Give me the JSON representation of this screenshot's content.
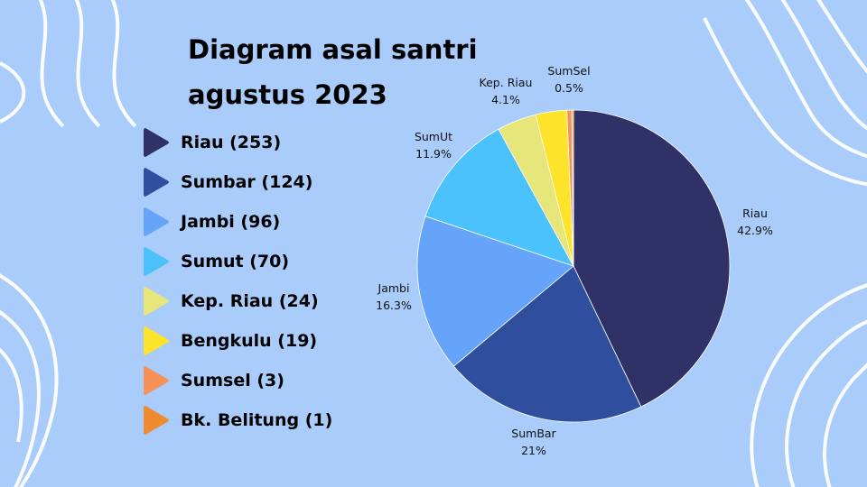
{
  "title_line1": "Diagram asal santri",
  "title_line2": "agustus 2023",
  "legend": [
    {
      "label": "Riau (253)",
      "color": "#2f3167"
    },
    {
      "label": "Sumbar (124)",
      "color": "#2f4f9e"
    },
    {
      "label": "Jambi (96)",
      "color": "#66a4fa"
    },
    {
      "label": "Sumut (70)",
      "color": "#4bc2fc"
    },
    {
      "label": "Kep. Riau (24)",
      "color": "#e7e67a"
    },
    {
      "label": "Bengkulu (19)",
      "color": "#fde329"
    },
    {
      "label": "Sumsel (3)",
      "color": "#f59257"
    },
    {
      "label": "Bk. Belitung (1)",
      "color": "#ef8a2e"
    }
  ],
  "chart_data": {
    "type": "pie",
    "title": "Diagram asal santri agustus 2023",
    "slices": [
      {
        "name": "Riau",
        "value": 253,
        "percent_label": "42.9%",
        "color": "#2f3167"
      },
      {
        "name": "SumBar",
        "value": 124,
        "percent_label": "21%",
        "color": "#2f4f9e"
      },
      {
        "name": "Jambi",
        "value": 96,
        "percent_label": "16.3%",
        "color": "#66a4fa"
      },
      {
        "name": "SumUt",
        "value": 70,
        "percent_label": "11.9%",
        "color": "#4bc2fc"
      },
      {
        "name": "Kep. Riau",
        "value": 24,
        "percent_label": "4.1%",
        "color": "#e7e67a"
      },
      {
        "name": "",
        "value": 19,
        "percent_label": "",
        "color": "#fde329"
      },
      {
        "name": "SumSel",
        "value": 3,
        "percent_label": "0.5%",
        "color": "#f59257"
      },
      {
        "name": "",
        "value": 1,
        "percent_label": "",
        "color": "#ef8a2e"
      }
    ]
  }
}
